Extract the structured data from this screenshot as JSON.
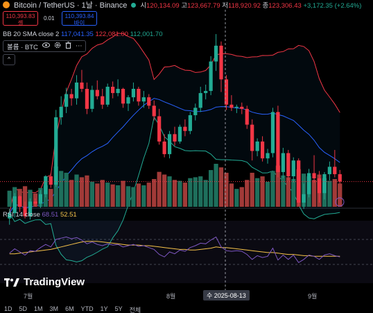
{
  "header": {
    "symbol": "Bitcoin / TetherUS · 1날 · Binance",
    "open_label": "시",
    "open": "120,134.09",
    "high_label": "고",
    "high": "123,667.79",
    "low_label": "저",
    "low": "118,920.92",
    "close_label": "종",
    "close": "123,306.43",
    "change": "+3,172.35 (+2.64%)"
  },
  "trade": {
    "sell_price": "110,393.83",
    "sell_label": "셀",
    "spread": "0.01",
    "buy_price": "110,393.84",
    "buy_label": "바이"
  },
  "indicators": {
    "bb_name": "BB 20 SMA close 2",
    "bb_basis": "117,041.35",
    "bb_upper": "122,081.00",
    "bb_lower": "112,001.70",
    "volume_legend": "볼륨 · BTC",
    "collapse": "^",
    "rsi_name": "RSI 14 close",
    "rsi_value": "68.51",
    "rsi_ma": "52.51"
  },
  "branding": {
    "logo_text": "TradingView"
  },
  "x_axis": {
    "labels": [
      "7월",
      "8월",
      "9월"
    ],
    "cursor_date": "수 2025-08-13"
  },
  "bottom_bar": [
    "1D",
    "5D",
    "1M",
    "3M",
    "6M",
    "YTD",
    "1Y",
    "5Y",
    "전체"
  ],
  "colors": {
    "up": "#22ab94",
    "down": "#f23645",
    "bb_upper": "#f23645",
    "bb_basis": "#2962ff",
    "bb_lower": "#22ab94",
    "rsi": "#7e57c2",
    "rsi_ma": "#f7c34a",
    "vol_up": "#1e6f5c",
    "vol_down": "#a13a38"
  },
  "chart_data": {
    "type": "candlestick",
    "title": "Bitcoin / TetherUS · 1날 · Binance",
    "x_labels": [
      "7월",
      "8월",
      "9월"
    ],
    "y_range": [
      108000,
      125000
    ],
    "candles": [
      [
        106900,
        107800,
        106300,
        107400
      ],
      [
        107400,
        109300,
        107000,
        109000
      ],
      [
        109000,
        109100,
        107500,
        108000
      ],
      [
        108000,
        108500,
        106900,
        107100
      ],
      [
        107100,
        108800,
        106800,
        108500
      ],
      [
        108500,
        108800,
        108000,
        108300
      ],
      [
        108300,
        109600,
        107900,
        109200
      ],
      [
        109200,
        111000,
        108900,
        110900
      ],
      [
        110900,
        111200,
        109800,
        110100
      ],
      [
        110100,
        117200,
        109900,
        116500
      ],
      [
        116500,
        118500,
        115800,
        117500
      ],
      [
        117500,
        119300,
        116900,
        118700
      ],
      [
        118700,
        119200,
        117600,
        118300
      ],
      [
        118300,
        120500,
        117700,
        119800
      ],
      [
        119800,
        121000,
        118900,
        119200
      ],
      [
        119200,
        119800,
        116800,
        117300
      ],
      [
        117300,
        119500,
        117000,
        119100
      ],
      [
        119100,
        120000,
        118200,
        118500
      ],
      [
        118500,
        119200,
        117300,
        117700
      ],
      [
        117700,
        119700,
        117500,
        119400
      ],
      [
        119400,
        119900,
        118300,
        118800
      ],
      [
        118800,
        120100,
        118500,
        119200
      ],
      [
        119200,
        119300,
        117400,
        117800
      ],
      [
        117800,
        118600,
        117100,
        118400
      ],
      [
        118400,
        119800,
        118000,
        119200
      ],
      [
        119200,
        119400,
        117600,
        118000
      ],
      [
        118000,
        119000,
        117400,
        118400
      ],
      [
        118400,
        118700,
        117300,
        117600
      ],
      [
        117600,
        118100,
        116200,
        116600
      ],
      [
        116600,
        117300,
        113900,
        114200
      ],
      [
        114200,
        114900,
        112700,
        113000
      ],
      [
        113000,
        115200,
        112600,
        114900
      ],
      [
        114900,
        115600,
        113800,
        114200
      ],
      [
        114200,
        115800,
        114000,
        115600
      ],
      [
        115600,
        116300,
        114700,
        115200
      ],
      [
        115200,
        117000,
        114900,
        116700
      ],
      [
        116700,
        117800,
        116200,
        117400
      ],
      [
        117400,
        119400,
        117000,
        118800
      ],
      [
        118800,
        119600,
        118200,
        119000
      ],
      [
        119000,
        122300,
        118600,
        121800
      ],
      [
        121800,
        124400,
        120900,
        123300
      ],
      [
        123300,
        123700,
        118900,
        120100
      ],
      [
        120100,
        120500,
        117200,
        117700
      ],
      [
        117700,
        118600,
        117100,
        117400
      ],
      [
        117400,
        117700,
        116900,
        117500
      ],
      [
        117500,
        117900,
        116800,
        117300
      ],
      [
        117300,
        117600,
        115400,
        115800
      ],
      [
        115800,
        116300,
        112400,
        113300
      ],
      [
        113300,
        114500,
        112800,
        114200
      ],
      [
        114200,
        114700,
        112300,
        112600
      ],
      [
        112600,
        113500,
        112100,
        113100
      ],
      [
        113100,
        117400,
        112700,
        117000
      ],
      [
        117000,
        117600,
        110800,
        111300
      ],
      [
        111300,
        113600,
        110700,
        113100
      ],
      [
        113100,
        113400,
        110500,
        110900
      ],
      [
        110900,
        112700,
        110300,
        112400
      ],
      [
        112400,
        112600,
        108100,
        108400
      ],
      [
        108400,
        110200,
        107800,
        109200
      ],
      [
        109200,
        111600,
        108900,
        111200
      ],
      [
        111200,
        112900,
        110300,
        110700
      ],
      [
        110700,
        111400,
        108400,
        109300
      ],
      [
        109300,
        111300,
        108700,
        111100
      ],
      [
        111100,
        112300,
        110500,
        111800
      ],
      [
        111800,
        113400,
        110800,
        111100
      ],
      [
        111100,
        111500,
        110200,
        110400
      ]
    ],
    "volume": [
      [
        18000,
        1
      ],
      [
        22000,
        1
      ],
      [
        20000,
        0
      ],
      [
        23000,
        0
      ],
      [
        19000,
        1
      ],
      [
        15000,
        0
      ],
      [
        21000,
        1
      ],
      [
        24000,
        1
      ],
      [
        20000,
        0
      ],
      [
        45000,
        1
      ],
      [
        40000,
        1
      ],
      [
        38000,
        1
      ],
      [
        30000,
        0
      ],
      [
        36000,
        1
      ],
      [
        33000,
        0
      ],
      [
        35000,
        0
      ],
      [
        28000,
        1
      ],
      [
        26000,
        0
      ],
      [
        30000,
        0
      ],
      [
        27000,
        1
      ],
      [
        25000,
        0
      ],
      [
        24000,
        1
      ],
      [
        29000,
        0
      ],
      [
        23000,
        1
      ],
      [
        22000,
        1
      ],
      [
        26000,
        0
      ],
      [
        24000,
        1
      ],
      [
        27000,
        0
      ],
      [
        31000,
        0
      ],
      [
        39000,
        0
      ],
      [
        36000,
        0
      ],
      [
        34000,
        1
      ],
      [
        30000,
        0
      ],
      [
        29000,
        1
      ],
      [
        27000,
        0
      ],
      [
        32000,
        1
      ],
      [
        33000,
        1
      ],
      [
        34000,
        1
      ],
      [
        30000,
        1
      ],
      [
        41000,
        1
      ],
      [
        48000,
        1
      ],
      [
        44000,
        0
      ],
      [
        38000,
        0
      ],
      [
        26000,
        0
      ],
      [
        20000,
        1
      ],
      [
        22000,
        0
      ],
      [
        30000,
        0
      ],
      [
        38000,
        0
      ],
      [
        32000,
        1
      ],
      [
        34000,
        0
      ],
      [
        28000,
        1
      ],
      [
        40000,
        1
      ],
      [
        46000,
        0
      ],
      [
        35000,
        1
      ],
      [
        33000,
        0
      ],
      [
        31000,
        1
      ],
      [
        42000,
        0
      ],
      [
        37000,
        1
      ],
      [
        34000,
        1
      ],
      [
        30000,
        0
      ],
      [
        36000,
        0
      ],
      [
        32000,
        1
      ],
      [
        29000,
        1
      ],
      [
        31000,
        0
      ],
      [
        26000,
        0
      ]
    ],
    "rsi_range": [
      0,
      100
    ],
    "rsi": [
      48,
      55,
      50,
      45,
      52,
      51,
      57,
      62,
      58,
      70,
      72,
      74,
      71,
      73,
      69,
      63,
      66,
      62,
      60,
      63,
      61,
      62,
      58,
      60,
      62,
      59,
      60,
      57,
      54,
      46,
      42,
      50,
      47,
      53,
      51,
      57,
      60,
      64,
      63,
      69,
      74,
      58,
      52,
      51,
      52,
      51,
      46,
      38,
      44,
      41,
      43,
      56,
      37,
      45,
      38,
      45,
      33,
      38,
      45,
      43,
      38,
      45,
      47,
      44,
      42
    ],
    "rsi_ma": [
      47,
      47,
      48,
      49,
      50,
      51,
      52,
      53,
      54,
      56,
      58,
      60,
      62,
      64,
      66,
      67,
      67,
      67,
      66,
      65,
      64,
      63,
      62,
      61,
      61,
      61,
      60,
      60,
      59,
      58,
      57,
      56,
      55,
      54,
      54,
      53,
      53,
      54,
      55,
      56,
      58,
      57,
      57,
      56,
      55,
      54,
      53,
      52,
      51,
      50,
      49,
      49,
      48,
      47,
      46,
      46,
      45,
      44,
      44,
      43,
      43,
      43,
      43,
      43,
      43
    ]
  }
}
